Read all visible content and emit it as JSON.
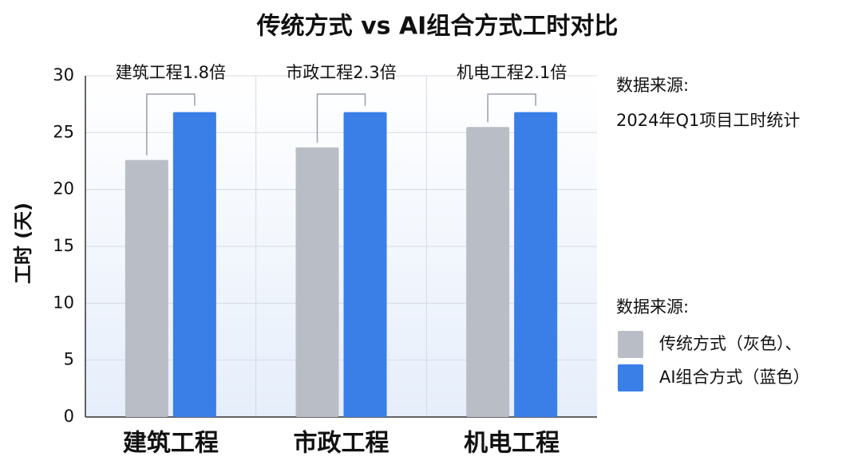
{
  "chart_data": {
    "type": "bar",
    "title": "传统方式 vs AI组合方式工时对比",
    "ylabel": "工时 (天)",
    "categories": [
      "建筑工程",
      "市政工程",
      "机电工程"
    ],
    "series": [
      {
        "name": "传统方式（灰色）、",
        "color": "#b9bec6",
        "values": [
          22.6,
          23.7,
          25.5
        ]
      },
      {
        "name": "AI组合方式（蓝色）",
        "color": "#3a7ee8",
        "values": [
          26.8,
          26.8,
          26.8
        ]
      }
    ],
    "annotations": [
      "建筑工程1.8倍",
      "市政工程2.3倍",
      "机电工程2.1倍"
    ],
    "source_label": "数据来源:",
    "source": "2024年Q1项目工时统计",
    "legend_title": "数据来源:",
    "ylim": [
      0,
      30
    ],
    "yticks": [
      0,
      5,
      10,
      15,
      20,
      25,
      30
    ],
    "grid": true
  }
}
